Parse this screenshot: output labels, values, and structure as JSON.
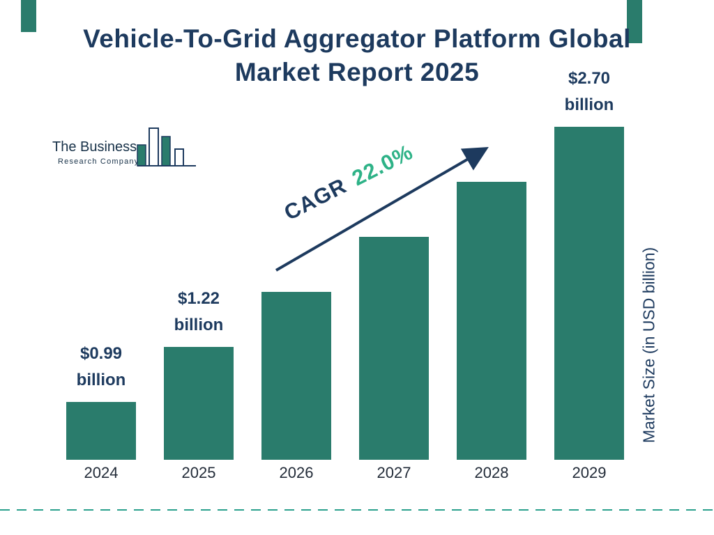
{
  "title": {
    "line1": "Vehicle-To-Grid Aggregator Platform Global",
    "line2": "Market Report 2025"
  },
  "logo": {
    "name_line1": "The Business",
    "name_line2": "Research Company"
  },
  "chart_data": {
    "type": "bar",
    "title": "Vehicle-To-Grid Aggregator Platform Global Market Report 2025",
    "categories": [
      "2024",
      "2025",
      "2026",
      "2027",
      "2028",
      "2029"
    ],
    "values": [
      0.99,
      1.22,
      1.49,
      1.82,
      2.21,
      2.7
    ],
    "unlabeled_values_estimated_from_cagr": [
      "2026",
      "2027",
      "2028"
    ],
    "value_labels": [
      [
        "$0.99",
        "billion"
      ],
      [
        "$1.22",
        "billion"
      ],
      null,
      null,
      null,
      [
        "$2.70",
        "billion"
      ]
    ],
    "xlabel": "",
    "ylabel": "Market Size (in USD billion)",
    "ylim": [
      0,
      2.9
    ],
    "grid": "off",
    "legend": "none",
    "cagr_prefix": "CAGR",
    "cagr_value": "22.0%",
    "colors": {
      "bar": "#2A7C6C",
      "navy": "#1D3A5E",
      "green": "#2EB287",
      "dash": "#2AA08C"
    }
  }
}
